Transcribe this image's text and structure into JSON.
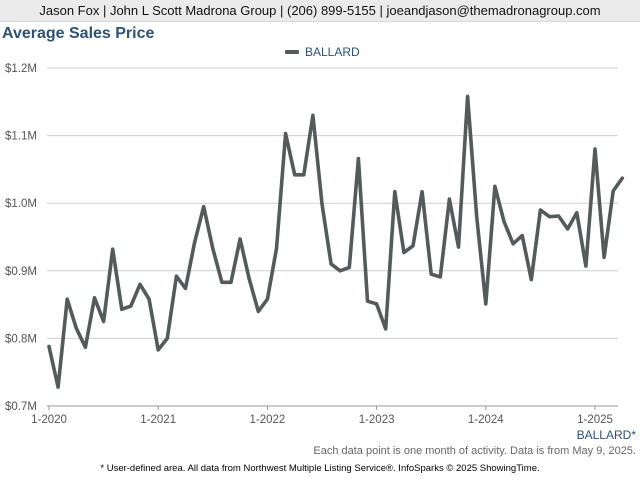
{
  "header": {
    "contact": "Jason Fox | John L Scott Madrona Group | (206) 899-5155 | joeandjason@themadronagroup.com"
  },
  "area_label": "BALLARD*",
  "note": "Each data point is one month of activity. Data is from May 9, 2025.",
  "footer": "* User-defined area. All data from Northwest Multiple Listing Service®. InfoSparks © 2025 ShowingTime.",
  "colors": {
    "line": "#545b5a",
    "title": "#2e5273",
    "grid": "#cfcfcf"
  },
  "chart_data": {
    "type": "line",
    "title": "Average Sales Price",
    "legend_position": "top-center",
    "grid": true,
    "x_tick_labels": [
      "1-2020",
      "1-2021",
      "1-2022",
      "1-2023",
      "1-2024",
      "1-2025"
    ],
    "y_tick_labels": [
      "$0.7M",
      "$0.8M",
      "$0.9M",
      "$1.0M",
      "$1.1M",
      "$1.2M"
    ],
    "y_ticks": [
      0.7,
      0.8,
      0.9,
      1.0,
      1.1,
      1.2
    ],
    "ylim": [
      0.7,
      1.2
    ],
    "x_start": "2020-01",
    "series": [
      {
        "name": "BALLARD",
        "values": [
          0.788,
          0.728,
          0.858,
          0.815,
          0.787,
          0.86,
          0.825,
          0.932,
          0.843,
          0.848,
          0.88,
          0.858,
          0.783,
          0.8,
          0.892,
          0.874,
          0.942,
          0.995,
          0.933,
          0.883,
          0.883,
          0.947,
          0.888,
          0.84,
          0.858,
          0.933,
          1.103,
          1.042,
          1.042,
          1.13,
          0.999,
          0.91,
          0.9,
          0.905,
          1.066,
          0.855,
          0.851,
          0.814,
          1.017,
          0.927,
          0.937,
          1.017,
          0.895,
          0.891,
          1.006,
          0.935,
          1.158,
          0.98,
          0.851,
          1.025,
          0.973,
          0.94,
          0.952,
          0.887,
          0.99,
          0.98,
          0.981,
          0.962,
          0.986,
          0.907,
          1.08,
          0.92,
          1.018,
          1.037
        ]
      }
    ]
  }
}
